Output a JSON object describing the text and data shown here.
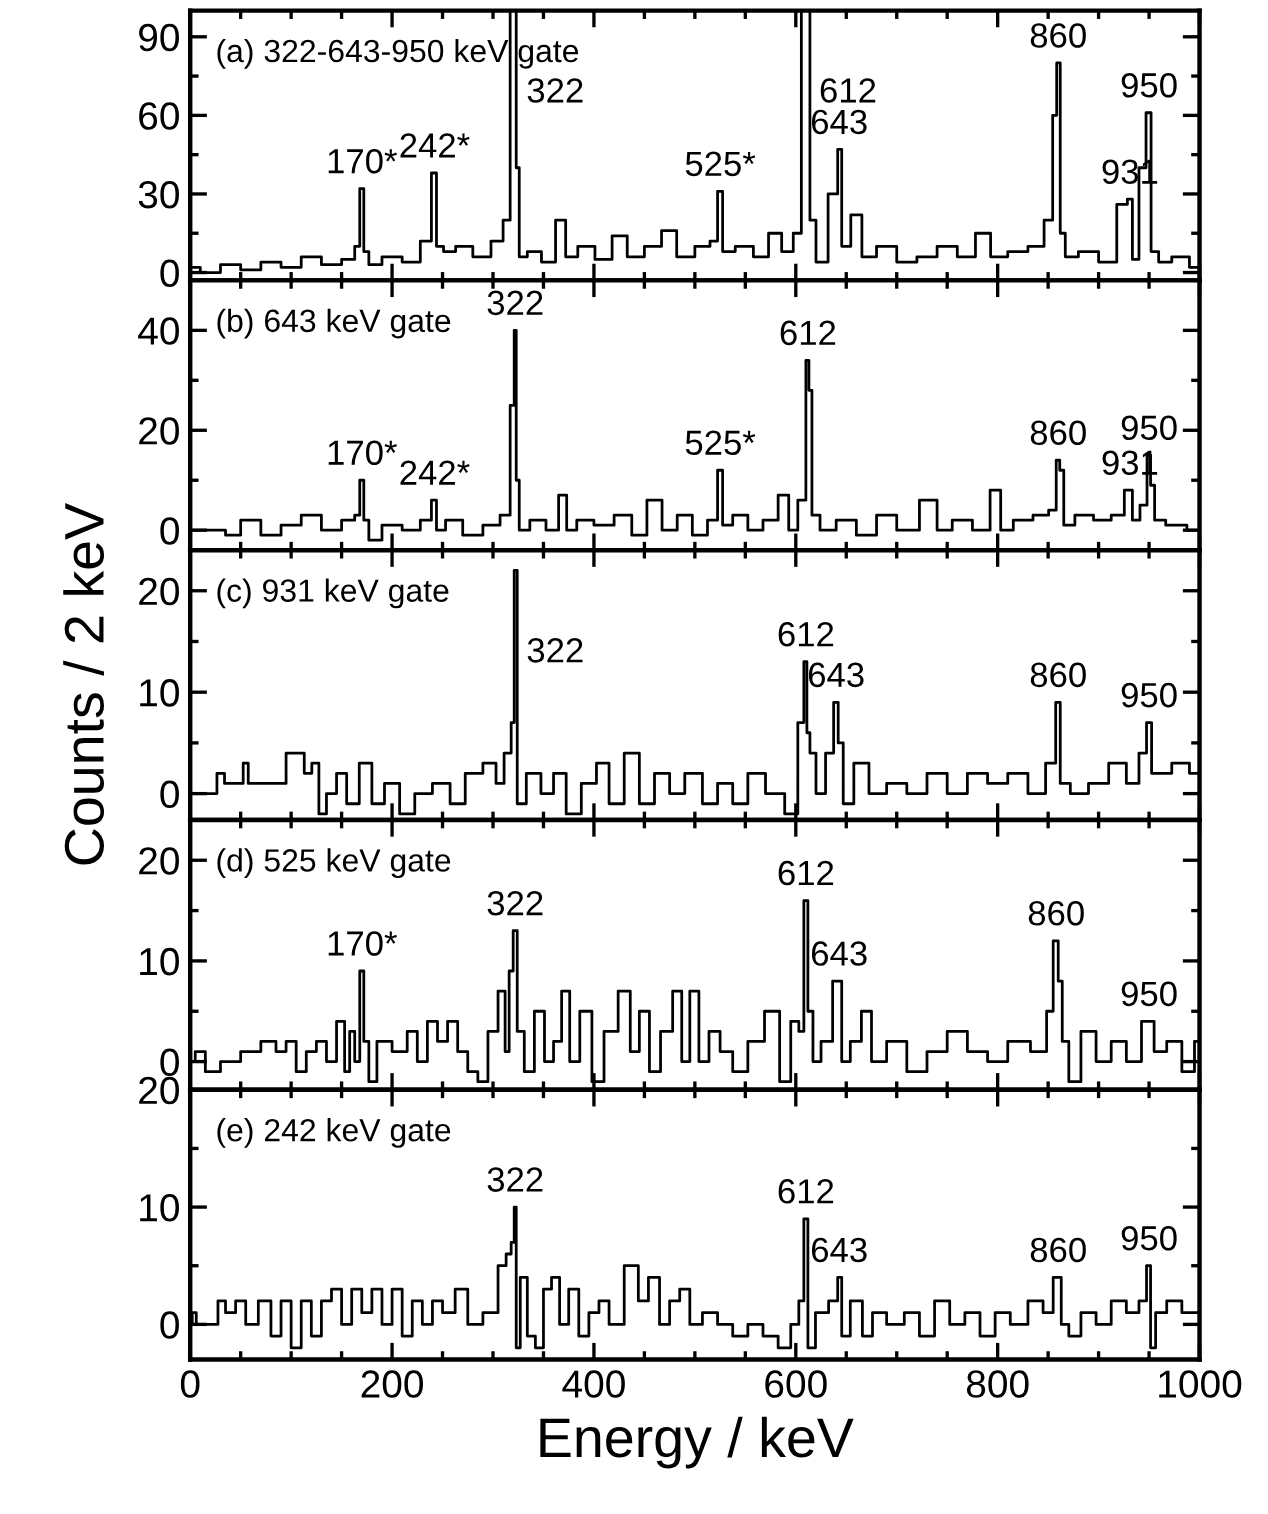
{
  "chart_data": [
    {
      "type": "step",
      "title": "(a) 322-643-950 keV gate",
      "color": "#000000",
      "xlim": [
        0,
        1000
      ],
      "ylim": [
        -3,
        100
      ],
      "yticks": [
        0,
        30,
        60,
        90
      ],
      "tick_labels": "y",
      "x": [
        0,
        20,
        40,
        60,
        80,
        100,
        120,
        140,
        160,
        166,
        170,
        174,
        180,
        200,
        220,
        236,
        242,
        246,
        256,
        270,
        290,
        306,
        314,
        320,
        322,
        324,
        328,
        340,
        356,
        368,
        376,
        392,
        410,
        426,
        440,
        460,
        474,
        490,
        510,
        520,
        525,
        530,
        550,
        566,
        580,
        592,
        603,
        608,
        612,
        616,
        624,
        640,
        643,
        648,
        661,
        670,
        690,
        710,
        730,
        750,
        770,
        786,
        800,
        820,
        840,
        852,
        857,
        860,
        864,
        870,
        890,
        910,
        926,
        931,
        936,
        944,
        950,
        954,
        965,
        980,
        1000
      ],
      "values": [
        2,
        0,
        3,
        1,
        4,
        2,
        6,
        3,
        5,
        10,
        32,
        8,
        3,
        6,
        4,
        12,
        38,
        10,
        8,
        10,
        6,
        12,
        20,
        100,
        100,
        40,
        6,
        8,
        4,
        20,
        6,
        10,
        5,
        14,
        6,
        10,
        16,
        6,
        10,
        12,
        31,
        8,
        10,
        6,
        15,
        8,
        15,
        100,
        100,
        20,
        4,
        30,
        47,
        10,
        22,
        6,
        10,
        4,
        6,
        10,
        6,
        15,
        6,
        8,
        10,
        20,
        60,
        80,
        15,
        6,
        8,
        4,
        26,
        28,
        5,
        40,
        61,
        8,
        4,
        6,
        2
      ],
      "annotations": [
        {
          "text": "322",
          "x": 322,
          "y": 100
        },
        {
          "text": "612",
          "x": 612,
          "y": 100
        },
        {
          "text": "643",
          "x": 643,
          "y": 47
        },
        {
          "text": "860",
          "x": 860,
          "y": 80
        },
        {
          "text": "931",
          "x": 931,
          "y": 28
        },
        {
          "text": "950",
          "x": 950,
          "y": 61
        },
        {
          "text": "170*",
          "x": 170,
          "y": 32
        },
        {
          "text": "242*",
          "x": 242,
          "y": 38
        },
        {
          "text": "525*",
          "x": 525,
          "y": 31
        }
      ]
    },
    {
      "type": "step",
      "title": "(b) 643 keV gate",
      "color": "#000000",
      "xlim": [
        0,
        1000
      ],
      "ylim": [
        -4,
        50
      ],
      "yticks": [
        0,
        20,
        40
      ],
      "tick_labels": "y",
      "x": [
        0,
        30,
        40,
        60,
        80,
        100,
        120,
        140,
        160,
        166,
        170,
        174,
        180,
        200,
        220,
        236,
        242,
        246,
        260,
        280,
        300,
        314,
        320,
        322,
        324,
        328,
        345,
        360,
        370,
        376,
        390,
        410,
        430,
        445,
        460,
        475,
        490,
        505,
        520,
        525,
        530,
        545,
        560,
        575,
        590,
        596,
        608,
        612,
        614,
        618,
        630,
        650,
        670,
        690,
        710,
        735,
        745,
        765,
        785,
        800,
        806,
        825,
        845,
        856,
        860,
        863,
        868,
        885,
        905,
        920,
        931,
        936,
        946,
        950,
        953,
        958,
        975,
        1000
      ],
      "values": [
        0,
        0,
        -1,
        2,
        -1,
        1,
        3,
        0,
        2,
        3,
        10,
        2,
        -2,
        1,
        0,
        2,
        6,
        0,
        2,
        -1,
        1,
        3,
        25,
        40,
        10,
        0,
        2,
        0,
        7,
        0,
        2,
        1,
        3,
        -1,
        6,
        0,
        3,
        -1,
        2,
        12,
        1,
        3,
        0,
        2,
        7,
        0,
        6,
        34,
        28,
        3,
        0,
        2,
        -1,
        3,
        0,
        6,
        0,
        2,
        0,
        8,
        0,
        2,
        3,
        4,
        14,
        12,
        1,
        3,
        2,
        3,
        8,
        2,
        5,
        15,
        9,
        2,
        1,
        0
      ],
      "annotations": [
        {
          "text": "322",
          "x": 322,
          "y": 40
        },
        {
          "text": "612",
          "x": 612,
          "y": 34
        },
        {
          "text": "860",
          "x": 860,
          "y": 14
        },
        {
          "text": "931",
          "x": 931,
          "y": 8
        },
        {
          "text": "950",
          "x": 950,
          "y": 15
        },
        {
          "text": "170*",
          "x": 170,
          "y": 10
        },
        {
          "text": "242*",
          "x": 242,
          "y": 6
        },
        {
          "text": "525*",
          "x": 525,
          "y": 12
        }
      ]
    },
    {
      "type": "step",
      "title": "(c) 931 keV gate",
      "ylabel": "Counts / 2 keV",
      "color": "#000000",
      "xlim": [
        0,
        1000
      ],
      "ylim": [
        -2.6,
        24
      ],
      "yticks": [
        0,
        10,
        20
      ],
      "tick_labels": "y",
      "x": [
        0,
        25,
        28,
        40,
        50,
        55,
        60,
        70,
        80,
        110,
        116,
        125,
        130,
        140,
        150,
        160,
        175,
        185,
        200,
        215,
        230,
        250,
        265,
        280,
        300,
        306,
        316,
        320,
        322,
        326,
        340,
        355,
        365,
        380,
        395,
        410,
        420,
        440,
        450,
        470,
        480,
        500,
        515,
        530,
        545,
        560,
        580,
        598,
        606,
        610,
        612,
        616,
        624,
        635,
        640,
        644,
        650,
        665,
        680,
        700,
        720,
        740,
        760,
        780,
        800,
        820,
        840,
        855,
        860,
        864,
        880,
        900,
        920,
        935,
        945,
        950,
        955,
        965,
        980,
        1000
      ],
      "values": [
        0,
        0,
        2,
        1,
        1,
        3,
        1,
        1,
        1,
        4,
        2,
        3,
        -2,
        0,
        2,
        -1,
        3,
        -1,
        1,
        -2,
        0,
        1,
        -1,
        2,
        3,
        1,
        4,
        7,
        22,
        -1,
        2,
        0,
        2,
        -2,
        1,
        3,
        -1,
        4,
        -1,
        2,
        0,
        2,
        -1,
        1,
        -1,
        2,
        0,
        -2,
        7,
        13,
        6,
        4,
        0,
        4,
        9,
        5,
        -1,
        3,
        0,
        1,
        0,
        2,
        0,
        2,
        1,
        2,
        0,
        3,
        9,
        1,
        0,
        1,
        3,
        1,
        4,
        7,
        2,
        2,
        3,
        2
      ],
      "annotations": [
        {
          "text": "322",
          "x": 322,
          "y": 22
        },
        {
          "text": "612",
          "x": 610,
          "y": 13
        },
        {
          "text": "643",
          "x": 640,
          "y": 9
        },
        {
          "text": "860",
          "x": 860,
          "y": 9
        },
        {
          "text": "950",
          "x": 950,
          "y": 7
        }
      ]
    },
    {
      "type": "step",
      "title": "(d) 525 keV gate",
      "color": "#000000",
      "xlim": [
        0,
        1000
      ],
      "ylim": [
        -2.8,
        24
      ],
      "yticks": [
        0,
        10,
        20
      ],
      "tick_labels": "y",
      "x": [
        0,
        10,
        20,
        40,
        60,
        80,
        90,
        100,
        110,
        120,
        130,
        140,
        150,
        156,
        160,
        166,
        170,
        174,
        180,
        190,
        210,
        220,
        230,
        240,
        250,
        260,
        270,
        280,
        290,
        300,
        310,
        314,
        318,
        322,
        326,
        336,
        346,
        356,
        364,
        372,
        380,
        392,
        404,
        416,
        432,
        440,
        450,
        460,
        472,
        484,
        490,
        500,
        508,
        520,
        530,
        545,
        560,
        578,
        590,
        600,
        606,
        610,
        614,
        620,
        630,
        643,
        648,
        660,
        670,
        680,
        700,
        720,
        740,
        760,
        780,
        800,
        820,
        845,
        852,
        858,
        862,
        866,
        875,
        890,
        905,
        920,
        935,
        950,
        960,
        975,
        990,
        1000
      ],
      "values": [
        0,
        1,
        -1,
        0,
        1,
        2,
        1,
        2,
        -1,
        1,
        2,
        0,
        4,
        -1,
        3,
        0,
        9,
        2,
        -2,
        2,
        1,
        3,
        0,
        4,
        2,
        4,
        1,
        -1,
        -2,
        3,
        7,
        1,
        9,
        13,
        3,
        -1,
        5,
        0,
        2,
        7,
        0,
        5,
        -2,
        3,
        7,
        1,
        5,
        -1,
        3,
        7,
        0,
        7,
        0,
        3,
        1,
        -1,
        2,
        5,
        -2,
        4,
        3,
        16,
        5,
        0,
        2,
        8,
        0,
        2,
        5,
        0,
        2,
        -1,
        1,
        3,
        1,
        0,
        2,
        1,
        5,
        12,
        8,
        2,
        -2,
        3,
        0,
        2,
        0,
        4,
        1,
        2,
        -1,
        2
      ],
      "annotations": [
        {
          "text": "322",
          "x": 322,
          "y": 13
        },
        {
          "text": "612",
          "x": 610,
          "y": 16
        },
        {
          "text": "643",
          "x": 643,
          "y": 8
        },
        {
          "text": "860",
          "x": 858,
          "y": 12
        },
        {
          "text": "950",
          "x": 950,
          "y": 4
        },
        {
          "text": "170*",
          "x": 170,
          "y": 9
        }
      ]
    },
    {
      "type": "step",
      "title": "(e) 242 keV gate",
      "xlabel": "Energy / keV",
      "color": "#000000",
      "xlim": [
        0,
        1000
      ],
      "ylim": [
        -3,
        20
      ],
      "yticks": [
        0,
        10,
        20
      ],
      "xticks": [
        0,
        200,
        400,
        600,
        800,
        1000
      ],
      "x": [
        0,
        4,
        8,
        25,
        30,
        40,
        50,
        60,
        75,
        85,
        95,
        105,
        115,
        125,
        135,
        145,
        155,
        165,
        175,
        185,
        195,
        205,
        215,
        225,
        235,
        245,
        255,
        270,
        280,
        300,
        310,
        316,
        320,
        322,
        324,
        330,
        338,
        346,
        354,
        362,
        370,
        380,
        390,
        400,
        410,
        420,
        440,
        448,
        460,
        470,
        480,
        490,
        500,
        515,
        530,
        545,
        560,
        575,
        590,
        600,
        606,
        610,
        614,
        625,
        640,
        643,
        648,
        660,
        672,
        680,
        700,
        715,
        730,
        745,
        760,
        775,
        790,
        805,
        820,
        840,
        850,
        860,
        866,
        875,
        890,
        905,
        920,
        935,
        945,
        950,
        953,
        960,
        975,
        990,
        1000
      ],
      "values": [
        0,
        1,
        0,
        0,
        2,
        1,
        2,
        0,
        2,
        -1,
        2,
        -2,
        2,
        -1,
        2,
        3,
        0,
        3,
        1,
        3,
        0,
        3,
        -1,
        2,
        0,
        2,
        1,
        3,
        0,
        1,
        5,
        6,
        7,
        10,
        -2,
        4,
        -1,
        -2,
        3,
        4,
        0,
        3,
        -1,
        1,
        2,
        0,
        5,
        2,
        4,
        0,
        2,
        3,
        0,
        1,
        0,
        -1,
        0,
        -1,
        -2,
        0,
        2,
        9,
        -2,
        1,
        2,
        4,
        -1,
        2,
        -1,
        1,
        0,
        1,
        -1,
        2,
        0,
        1,
        -1,
        1,
        0,
        2,
        1,
        4,
        0,
        -1,
        1,
        0,
        2,
        1,
        2,
        5,
        -2,
        1,
        2,
        1,
        1
      ],
      "annotations": [
        {
          "text": "322",
          "x": 322,
          "y": 10
        },
        {
          "text": "612",
          "x": 610,
          "y": 9
        },
        {
          "text": "643",
          "x": 643,
          "y": 4
        },
        {
          "text": "860",
          "x": 860,
          "y": 4
        },
        {
          "text": "950",
          "x": 950,
          "y": 5
        }
      ]
    }
  ]
}
